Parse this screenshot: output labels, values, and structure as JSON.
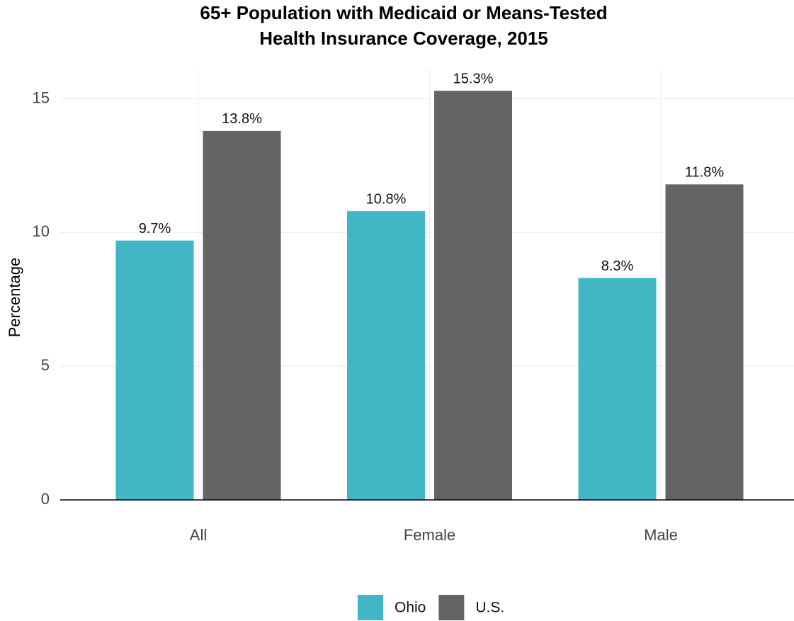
{
  "chart_data": {
    "type": "bar",
    "title": [
      "65+ Population with Medicaid or Means-Tested",
      "Health Insurance Coverage, 2015"
    ],
    "y_label": "Percentage",
    "categories": [
      "All",
      "Female",
      "Male"
    ],
    "series": [
      {
        "name": "Ohio",
        "color": "#41b6c4",
        "values": [
          9.7,
          10.8,
          8.3
        ],
        "value_labels": [
          "9.7%",
          "10.8%",
          "8.3%"
        ]
      },
      {
        "name": "U.S.",
        "color": "#636466",
        "values": [
          13.8,
          15.3,
          11.8
        ],
        "value_labels": [
          "13.8%",
          "15.3%",
          "11.8%"
        ]
      }
    ],
    "ylim": [
      0,
      16.1
    ],
    "yticks": [
      0,
      5,
      10,
      15
    ],
    "grid": true,
    "legend": "bottom"
  }
}
